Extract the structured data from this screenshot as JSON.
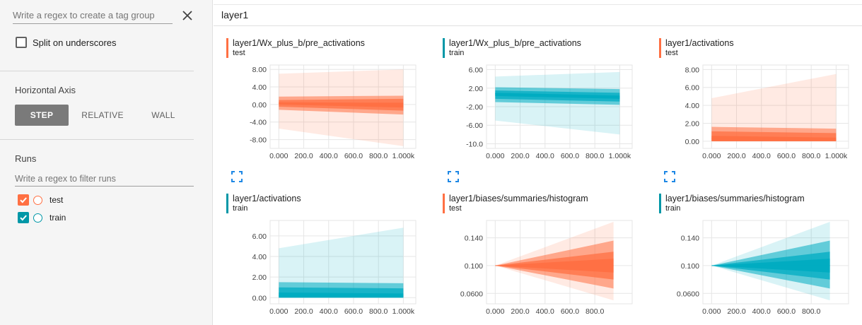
{
  "sidebar": {
    "tag_filter_placeholder": "Write a regex to create a tag group",
    "split_label": "Split on underscores",
    "horizontal_axis_title": "Horizontal Axis",
    "axis_buttons": [
      {
        "label": "STEP",
        "active": true
      },
      {
        "label": "RELATIVE",
        "active": false
      },
      {
        "label": "WALL",
        "active": false
      }
    ],
    "runs_title": "Runs",
    "runs_filter_placeholder": "Write a regex to filter runs",
    "runs": [
      {
        "label": "test",
        "checked": true,
        "color": "#ff7043"
      },
      {
        "label": "train",
        "checked": true,
        "color": "#0097a7"
      }
    ]
  },
  "main": {
    "group_title": "layer1"
  },
  "colors": {
    "test": "#ff7043",
    "train": "#00acc1",
    "accent_blue": "#1e88e5"
  },
  "chart_data": [
    {
      "type": "area",
      "title": "layer1/Wx_plus_b/pre_activations",
      "run": "test",
      "color": "#ff7043",
      "ylim": [
        -10,
        9
      ],
      "yticks": [
        "8.00",
        "4.00",
        "0.00",
        "-4.00",
        "-8.00"
      ],
      "ytick_values": [
        8,
        4,
        0,
        -4,
        -8
      ],
      "xticks": [
        "0.000",
        "200.0",
        "400.0",
        "600.0",
        "800.0",
        "1.000k"
      ],
      "xtick_values": [
        0,
        200,
        400,
        600,
        800,
        1000
      ],
      "xlim": [
        -70,
        1100
      ],
      "x": [
        0,
        1000
      ],
      "percentile_bands": [
        {
          "start": [
            -5.5,
            7.0
          ],
          "end": [
            -9.5,
            8.0
          ]
        },
        {
          "start": [
            -1.2,
            1.8
          ],
          "end": [
            -2.3,
            2.0
          ]
        },
        {
          "start": [
            -0.5,
            1.0
          ],
          "end": [
            -1.4,
            1.3
          ]
        },
        {
          "start": [
            0.0,
            0.5
          ],
          "end": [
            -0.7,
            0.4
          ]
        }
      ],
      "median": [
        0.3,
        -0.3
      ]
    },
    {
      "type": "area",
      "title": "layer1/Wx_plus_b/pre_activations",
      "run": "train",
      "color": "#00acc1",
      "ylim": [
        -11,
        7
      ],
      "yticks": [
        "6.00",
        "2.00",
        "-2.00",
        "-6.00",
        "-10.0"
      ],
      "ytick_values": [
        6,
        2,
        -2,
        -6,
        -10
      ],
      "xticks": [
        "0.000",
        "200.0",
        "400.0",
        "600.0",
        "800.0",
        "1.000k"
      ],
      "xtick_values": [
        0,
        200,
        400,
        600,
        800,
        1000
      ],
      "xlim": [
        -70,
        1100
      ],
      "x": [
        0,
        1000
      ],
      "percentile_bands": [
        {
          "start": [
            -5.0,
            4.5
          ],
          "end": [
            -8.0,
            5.5
          ]
        },
        {
          "start": [
            -1.0,
            2.2
          ],
          "end": [
            -1.6,
            1.8
          ]
        },
        {
          "start": [
            -0.3,
            1.5
          ],
          "end": [
            -0.9,
            1.0
          ]
        },
        {
          "start": [
            0.3,
            1.0
          ],
          "end": [
            -0.3,
            0.4
          ]
        }
      ],
      "median": [
        0.8,
        0.1
      ]
    },
    {
      "type": "area",
      "title": "layer1/activations",
      "run": "test",
      "color": "#ff7043",
      "ylim": [
        -0.8,
        8.5
      ],
      "yticks": [
        "8.00",
        "6.00",
        "4.00",
        "2.00",
        "0.00"
      ],
      "ytick_values": [
        8,
        6,
        4,
        2,
        0
      ],
      "xticks": [
        "0.000",
        "200.0",
        "400.0",
        "600.0",
        "800.0",
        "1.000k"
      ],
      "xtick_values": [
        0,
        200,
        400,
        600,
        800,
        1000
      ],
      "xlim": [
        -70,
        1100
      ],
      "x": [
        0,
        1000
      ],
      "percentile_bands": [
        {
          "start": [
            0,
            4.8
          ],
          "end": [
            0,
            7.5
          ]
        },
        {
          "start": [
            0,
            1.6
          ],
          "end": [
            0,
            1.4
          ]
        },
        {
          "start": [
            0,
            1.1
          ],
          "end": [
            0,
            0.9
          ]
        },
        {
          "start": [
            0,
            0.6
          ],
          "end": [
            0,
            0.4
          ]
        }
      ],
      "median": [
        0.3,
        0.2
      ]
    },
    {
      "type": "area",
      "title": "layer1/activations",
      "run": "train",
      "color": "#00acc1",
      "ylim": [
        -0.6,
        7.5
      ],
      "yticks": [
        "6.00",
        "4.00",
        "2.00",
        "0.00"
      ],
      "ytick_values": [
        6,
        4,
        2,
        0
      ],
      "xticks": [
        "0.000",
        "200.0",
        "400.0",
        "600.0",
        "800.0",
        "1.000k"
      ],
      "xtick_values": [
        0,
        200,
        400,
        600,
        800,
        1000
      ],
      "xlim": [
        -70,
        1100
      ],
      "x": [
        0,
        1000
      ],
      "percentile_bands": [
        {
          "start": [
            0,
            4.8
          ],
          "end": [
            0,
            6.8
          ]
        },
        {
          "start": [
            0,
            1.5
          ],
          "end": [
            0,
            1.4
          ]
        },
        {
          "start": [
            0,
            1.0
          ],
          "end": [
            0,
            0.9
          ]
        },
        {
          "start": [
            0,
            0.5
          ],
          "end": [
            0,
            0.4
          ]
        }
      ],
      "median": [
        0.2,
        0.2
      ]
    },
    {
      "type": "area",
      "title": "layer1/biases/summaries/histogram",
      "run": "test",
      "color": "#ff7043",
      "ylim": [
        0.045,
        0.165
      ],
      "yticks": [
        "0.140",
        "0.100",
        "0.0600"
      ],
      "ytick_values": [
        0.14,
        0.1,
        0.06
      ],
      "xticks": [
        "0.000",
        "200.0",
        "400.0",
        "600.0",
        "800.0"
      ],
      "xtick_values": [
        0,
        200,
        400,
        600,
        800
      ],
      "xlim": [
        -70,
        1100
      ],
      "x": [
        0,
        950
      ],
      "percentile_bands": [
        {
          "start": [
            0.1,
            0.1
          ],
          "end": [
            0.05,
            0.163
          ]
        },
        {
          "start": [
            0.1,
            0.1
          ],
          "end": [
            0.067,
            0.136
          ]
        },
        {
          "start": [
            0.1,
            0.1
          ],
          "end": [
            0.08,
            0.12
          ]
        },
        {
          "start": [
            0.1,
            0.1
          ],
          "end": [
            0.09,
            0.11
          ]
        }
      ],
      "median": [
        0.1,
        0.1
      ]
    },
    {
      "type": "area",
      "title": "layer1/biases/summaries/histogram",
      "run": "train",
      "color": "#00acc1",
      "ylim": [
        0.045,
        0.165
      ],
      "yticks": [
        "0.140",
        "0.100",
        "0.0600"
      ],
      "ytick_values": [
        0.14,
        0.1,
        0.06
      ],
      "xticks": [
        "0.000",
        "200.0",
        "400.0",
        "600.0",
        "800.0"
      ],
      "xtick_values": [
        0,
        200,
        400,
        600,
        800
      ],
      "xlim": [
        -70,
        1100
      ],
      "x": [
        0,
        950
      ],
      "percentile_bands": [
        {
          "start": [
            0.1,
            0.1
          ],
          "end": [
            0.05,
            0.163
          ]
        },
        {
          "start": [
            0.1,
            0.1
          ],
          "end": [
            0.067,
            0.136
          ]
        },
        {
          "start": [
            0.1,
            0.1
          ],
          "end": [
            0.08,
            0.12
          ]
        },
        {
          "start": [
            0.1,
            0.1
          ],
          "end": [
            0.09,
            0.11
          ]
        }
      ],
      "median": [
        0.1,
        0.1
      ]
    }
  ]
}
